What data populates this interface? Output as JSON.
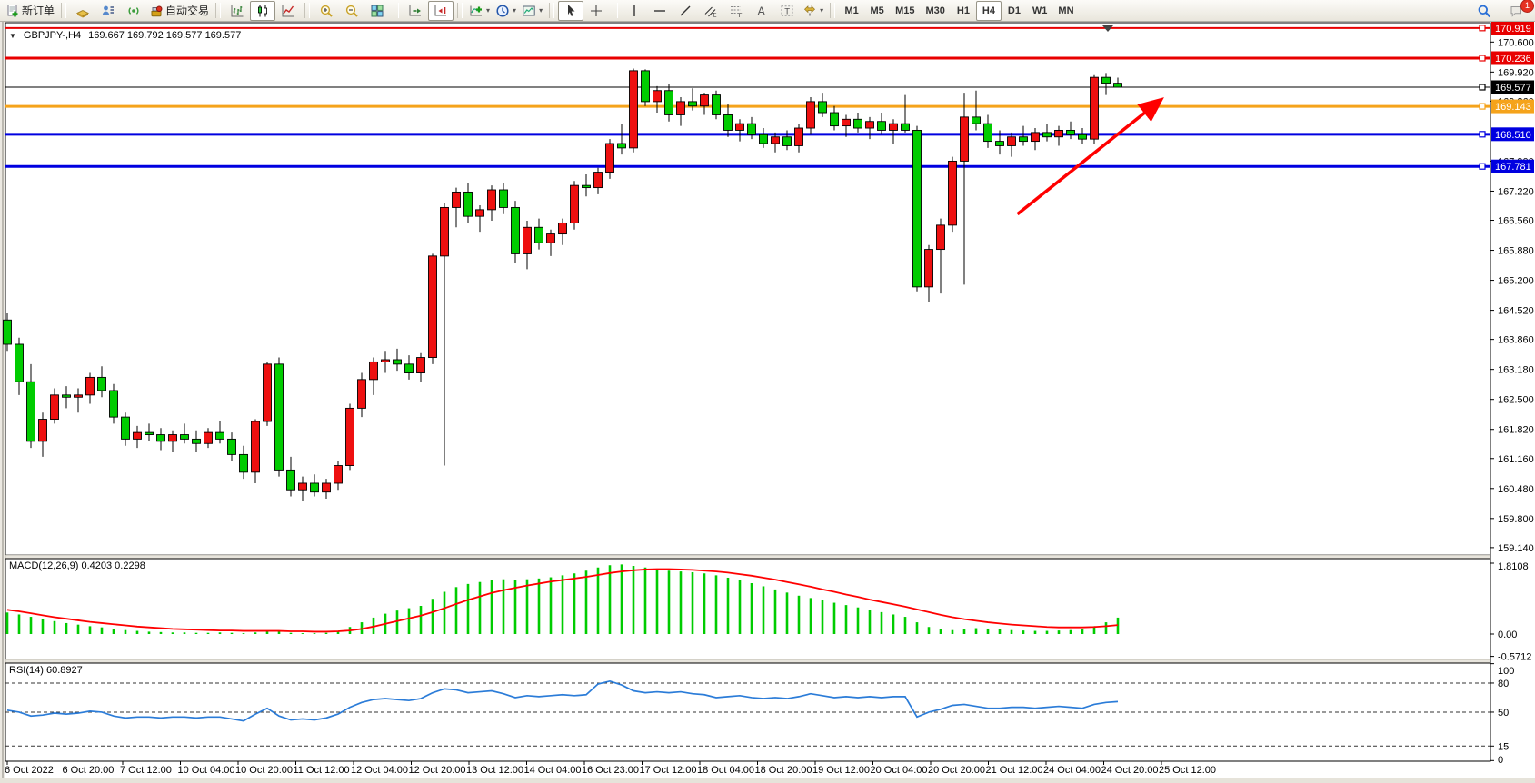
{
  "toolbar": {
    "groups": [
      {
        "items": [
          {
            "name": "new-order-button",
            "icon": "new-order-icon",
            "label": "新订单"
          }
        ]
      },
      {
        "items": [
          {
            "name": "chart-profiles-button",
            "icon": "chart-profiles-icon"
          },
          {
            "name": "market-watch-button",
            "icon": "market-watch-icon"
          },
          {
            "name": "signals-button",
            "icon": "signals-icon"
          },
          {
            "name": "autotrading-button",
            "icon": "autotrading-icon",
            "label": "自动交易"
          }
        ]
      },
      {
        "items": [
          {
            "name": "bar-chart-button",
            "icon": "bar-chart-icon"
          },
          {
            "name": "candlestick-button",
            "icon": "candlestick-icon",
            "pressed": true
          },
          {
            "name": "line-chart-button",
            "icon": "line-chart-icon"
          }
        ]
      },
      {
        "items": [
          {
            "name": "zoom-in-button",
            "icon": "zoom-in-icon"
          },
          {
            "name": "zoom-out-button",
            "icon": "zoom-out-icon"
          },
          {
            "name": "tile-windows-button",
            "icon": "tile-windows-icon"
          }
        ]
      },
      {
        "items": [
          {
            "name": "auto-scroll-button",
            "icon": "auto-scroll-icon"
          },
          {
            "name": "chart-shift-button",
            "icon": "chart-shift-icon",
            "pressed": true
          }
        ]
      },
      {
        "items": [
          {
            "name": "indicators-button",
            "icon": "indicators-icon",
            "dropdown": true
          },
          {
            "name": "periods-button",
            "icon": "periods-icon",
            "dropdown": true
          },
          {
            "name": "templates-button",
            "icon": "templates-icon",
            "dropdown": true
          }
        ]
      },
      {
        "items": [
          {
            "name": "cursor-button",
            "icon": "cursor-icon",
            "pressed": true
          },
          {
            "name": "crosshair-button",
            "icon": "crosshair-icon"
          }
        ]
      },
      {
        "items": [
          {
            "name": "vertical-line-button",
            "icon": "vertical-line-icon"
          },
          {
            "name": "horizontal-line-button",
            "icon": "horizontal-line-icon"
          },
          {
            "name": "trendline-button",
            "icon": "trendline-icon"
          },
          {
            "name": "equidistant-channel-button",
            "icon": "equidistant-channel-icon"
          },
          {
            "name": "fibonacci-button",
            "icon": "fibonacci-icon"
          },
          {
            "name": "text-button",
            "icon": "text-icon"
          },
          {
            "name": "text-label-button",
            "icon": "text-label-icon"
          },
          {
            "name": "arrows-button",
            "icon": "arrows-icon",
            "dropdown": true
          }
        ]
      },
      {
        "items": [
          {
            "name": "timeframe-m1-button",
            "label": "M1"
          },
          {
            "name": "timeframe-m5-button",
            "label": "M5"
          },
          {
            "name": "timeframe-m15-button",
            "label": "M15"
          },
          {
            "name": "timeframe-m30-button",
            "label": "M30"
          },
          {
            "name": "timeframe-h1-button",
            "label": "H1"
          },
          {
            "name": "timeframe-h4-button",
            "label": "H4",
            "pressed": true
          },
          {
            "name": "timeframe-d1-button",
            "label": "D1"
          },
          {
            "name": "timeframe-w1-button",
            "label": "W1"
          },
          {
            "name": "timeframe-mn-button",
            "label": "MN"
          }
        ]
      }
    ],
    "right": [
      {
        "name": "search-button",
        "icon": "search-icon"
      },
      {
        "name": "notifications-button",
        "icon": "chat-icon",
        "badge": "1"
      }
    ]
  },
  "chart": {
    "symbol_period": "GBPJPY-,H4",
    "ohlc": "169.667 169.792 169.577 169.577"
  },
  "chart_data": {
    "type": "candlestick",
    "symbol": "GBPJPY-",
    "timeframe": "H4",
    "current_bar": {
      "open": "169.667",
      "high": "169.792",
      "low": "169.577",
      "close": "169.577"
    },
    "colors": {
      "bull": "#ee1010",
      "bear": "#00cc00",
      "wick": "#000000",
      "macd_hist": "#00cc00",
      "macd_signal": "#ff0000",
      "rsi_line": "#2b7cd8",
      "arrow": "#ff0000"
    },
    "levels": [
      {
        "price": 170.919,
        "label": "170.919",
        "color": "#e80000",
        "width": 2
      },
      {
        "price": 170.236,
        "label": "170.236",
        "color": "#e80000",
        "width": 3
      },
      {
        "price": 169.577,
        "label": "169.577",
        "color": "#000000",
        "width": 1
      },
      {
        "price": 169.143,
        "label": "169.143",
        "color": "#f5a31b",
        "width": 3
      },
      {
        "price": 168.51,
        "label": "168.510",
        "color": "#0000e0",
        "width": 3
      },
      {
        "price": 167.781,
        "label": "167.781",
        "color": "#0000e0",
        "width": 3
      }
    ],
    "price_ticks": [
      "170.600",
      "169.920",
      "169.260",
      "167.900",
      "167.220",
      "166.560",
      "165.880",
      "165.200",
      "164.520",
      "163.860",
      "163.180",
      "162.500",
      "161.820",
      "161.160",
      "160.480",
      "159.800",
      "159.140"
    ],
    "candles": [
      [
        164.3,
        164.45,
        163.6,
        163.75
      ],
      [
        163.75,
        163.9,
        162.6,
        162.9
      ],
      [
        162.9,
        163.3,
        161.4,
        161.55
      ],
      [
        161.55,
        162.2,
        161.2,
        162.05
      ],
      [
        162.05,
        162.75,
        161.95,
        162.6
      ],
      [
        162.6,
        162.8,
        162.3,
        162.55
      ],
      [
        162.55,
        162.75,
        162.2,
        162.6
      ],
      [
        162.6,
        163.1,
        162.4,
        163.0
      ],
      [
        163.0,
        163.25,
        162.55,
        162.7
      ],
      [
        162.7,
        162.85,
        161.95,
        162.1
      ],
      [
        162.1,
        162.2,
        161.45,
        161.6
      ],
      [
        161.6,
        161.9,
        161.4,
        161.75
      ],
      [
        161.75,
        161.95,
        161.55,
        161.7
      ],
      [
        161.7,
        161.85,
        161.35,
        161.55
      ],
      [
        161.55,
        161.8,
        161.3,
        161.7
      ],
      [
        161.7,
        161.95,
        161.5,
        161.6
      ],
      [
        161.6,
        161.8,
        161.3,
        161.5
      ],
      [
        161.5,
        161.85,
        161.4,
        161.75
      ],
      [
        161.75,
        162.0,
        161.5,
        161.6
      ],
      [
        161.6,
        161.75,
        161.1,
        161.25
      ],
      [
        161.25,
        161.45,
        160.7,
        160.85
      ],
      [
        160.85,
        162.05,
        160.6,
        162.0
      ],
      [
        162.0,
        163.35,
        161.9,
        163.3
      ],
      [
        163.3,
        163.45,
        160.75,
        160.9
      ],
      [
        160.9,
        161.2,
        160.3,
        160.45
      ],
      [
        160.45,
        160.75,
        160.2,
        160.6
      ],
      [
        160.6,
        160.8,
        160.3,
        160.4
      ],
      [
        160.4,
        160.7,
        160.25,
        160.6
      ],
      [
        160.6,
        161.1,
        160.45,
        161.0
      ],
      [
        161.0,
        162.4,
        160.9,
        162.3
      ],
      [
        162.3,
        163.1,
        162.1,
        162.95
      ],
      [
        162.95,
        163.45,
        162.6,
        163.35
      ],
      [
        163.35,
        163.6,
        163.1,
        163.4
      ],
      [
        163.4,
        163.65,
        163.15,
        163.3
      ],
      [
        163.3,
        163.5,
        162.95,
        163.1
      ],
      [
        163.1,
        163.55,
        162.9,
        163.45
      ],
      [
        163.45,
        165.8,
        163.3,
        165.75
      ],
      [
        165.75,
        166.95,
        161.0,
        166.85
      ],
      [
        166.85,
        167.3,
        166.4,
        167.2
      ],
      [
        167.2,
        167.4,
        166.5,
        166.65
      ],
      [
        166.65,
        166.9,
        166.3,
        166.8
      ],
      [
        166.8,
        167.35,
        166.55,
        167.25
      ],
      [
        167.25,
        167.4,
        166.7,
        166.85
      ],
      [
        166.85,
        167.0,
        165.6,
        165.8
      ],
      [
        165.8,
        166.55,
        165.45,
        166.4
      ],
      [
        166.4,
        166.6,
        165.9,
        166.05
      ],
      [
        166.05,
        166.35,
        165.75,
        166.25
      ],
      [
        166.25,
        166.6,
        166.0,
        166.5
      ],
      [
        166.5,
        167.45,
        166.35,
        167.35
      ],
      [
        167.35,
        167.6,
        167.1,
        167.3
      ],
      [
        167.3,
        167.75,
        167.15,
        167.65
      ],
      [
        167.65,
        168.4,
        167.5,
        168.3
      ],
      [
        168.3,
        168.75,
        168.05,
        168.2
      ],
      [
        168.2,
        170.0,
        168.1,
        169.95
      ],
      [
        169.95,
        169.98,
        169.15,
        169.25
      ],
      [
        169.25,
        169.6,
        169.0,
        169.5
      ],
      [
        169.5,
        169.65,
        168.8,
        168.95
      ],
      [
        168.95,
        169.35,
        168.7,
        169.25
      ],
      [
        169.25,
        169.55,
        169.05,
        169.15
      ],
      [
        169.15,
        169.45,
        168.95,
        169.4
      ],
      [
        169.4,
        169.5,
        168.85,
        168.95
      ],
      [
        168.95,
        169.2,
        168.45,
        168.6
      ],
      [
        168.6,
        168.85,
        168.35,
        168.75
      ],
      [
        168.75,
        168.9,
        168.4,
        168.5
      ],
      [
        168.5,
        168.65,
        168.2,
        168.3
      ],
      [
        168.3,
        168.55,
        168.1,
        168.45
      ],
      [
        168.45,
        168.6,
        168.15,
        168.25
      ],
      [
        168.25,
        168.75,
        168.1,
        168.65
      ],
      [
        168.65,
        169.35,
        168.5,
        169.25
      ],
      [
        169.25,
        169.45,
        168.9,
        169.0
      ],
      [
        169.0,
        169.15,
        168.6,
        168.7
      ],
      [
        168.7,
        168.95,
        168.45,
        168.85
      ],
      [
        168.85,
        169.0,
        168.55,
        168.65
      ],
      [
        168.65,
        168.9,
        168.4,
        168.8
      ],
      [
        168.8,
        169.0,
        168.5,
        168.6
      ],
      [
        168.6,
        168.85,
        168.3,
        168.75
      ],
      [
        168.75,
        169.4,
        168.55,
        168.6
      ],
      [
        168.6,
        168.7,
        164.95,
        165.05
      ],
      [
        165.05,
        166.0,
        164.7,
        165.9
      ],
      [
        165.9,
        166.6,
        164.9,
        166.45
      ],
      [
        166.45,
        168.0,
        166.3,
        167.9
      ],
      [
        167.9,
        169.45,
        165.1,
        168.9
      ],
      [
        168.9,
        169.5,
        168.6,
        168.75
      ],
      [
        168.75,
        168.95,
        168.2,
        168.35
      ],
      [
        168.35,
        168.6,
        168.05,
        168.25
      ],
      [
        168.25,
        168.55,
        168.0,
        168.45
      ],
      [
        168.45,
        168.7,
        168.25,
        168.35
      ],
      [
        168.35,
        168.65,
        168.15,
        168.55
      ],
      [
        168.55,
        168.75,
        168.35,
        168.45
      ],
      [
        168.45,
        168.7,
        168.25,
        168.6
      ],
      [
        168.6,
        168.8,
        168.4,
        168.5
      ],
      [
        168.5,
        168.65,
        168.3,
        168.4
      ],
      [
        168.4,
        169.85,
        168.3,
        169.8
      ],
      [
        169.8,
        169.9,
        169.4,
        169.667
      ],
      [
        169.667,
        169.792,
        169.577,
        169.577
      ]
    ],
    "time_labels": [
      "6 Oct 2022",
      "6 Oct 20:00",
      "7 Oct 12:00",
      "10 Oct 04:00",
      "10 Oct 20:00",
      "11 Oct 12:00",
      "12 Oct 04:00",
      "12 Oct 20:00",
      "13 Oct 12:00",
      "14 Oct 04:00",
      "16 Oct 23:00",
      "17 Oct 12:00",
      "18 Oct 04:00",
      "18 Oct 20:00",
      "19 Oct 12:00",
      "20 Oct 04:00",
      "20 Oct 20:00",
      "21 Oct 12:00",
      "24 Oct 04:00",
      "24 Oct 20:00",
      "25 Oct 12:00"
    ],
    "macd": {
      "label": "MACD(12,26,9) 0.4203 0.2298",
      "axis": [
        "1.8108",
        "0.00",
        "-0.5712"
      ],
      "ylim": [
        -0.5712,
        1.8108
      ],
      "hist": [
        0.55,
        0.5,
        0.44,
        0.38,
        0.33,
        0.28,
        0.24,
        0.2,
        0.17,
        0.13,
        0.1,
        0.08,
        0.06,
        0.05,
        0.04,
        0.04,
        0.03,
        0.03,
        0.04,
        0.03,
        0.02,
        0.04,
        0.08,
        0.06,
        0.03,
        0.02,
        0.02,
        0.03,
        0.08,
        0.18,
        0.3,
        0.42,
        0.52,
        0.6,
        0.66,
        0.72,
        0.9,
        1.08,
        1.2,
        1.28,
        1.33,
        1.38,
        1.4,
        1.38,
        1.4,
        1.42,
        1.45,
        1.5,
        1.55,
        1.62,
        1.7,
        1.76,
        1.78,
        1.74,
        1.7,
        1.66,
        1.62,
        1.6,
        1.58,
        1.55,
        1.5,
        1.44,
        1.38,
        1.3,
        1.22,
        1.14,
        1.06,
        0.98,
        0.92,
        0.86,
        0.8,
        0.74,
        0.68,
        0.62,
        0.56,
        0.5,
        0.44,
        0.3,
        0.18,
        0.12,
        0.1,
        0.12,
        0.15,
        0.14,
        0.12,
        0.1,
        0.09,
        0.08,
        0.08,
        0.09,
        0.1,
        0.12,
        0.2,
        0.3,
        0.42
      ],
      "signal": [
        0.62,
        0.58,
        0.53,
        0.48,
        0.43,
        0.39,
        0.35,
        0.31,
        0.28,
        0.25,
        0.22,
        0.19,
        0.17,
        0.15,
        0.13,
        0.12,
        0.11,
        0.1,
        0.09,
        0.09,
        0.08,
        0.08,
        0.08,
        0.08,
        0.07,
        0.07,
        0.06,
        0.06,
        0.07,
        0.09,
        0.13,
        0.19,
        0.26,
        0.33,
        0.4,
        0.47,
        0.56,
        0.66,
        0.77,
        0.87,
        0.96,
        1.05,
        1.12,
        1.18,
        1.24,
        1.29,
        1.34,
        1.38,
        1.42,
        1.46,
        1.51,
        1.56,
        1.6,
        1.63,
        1.65,
        1.66,
        1.66,
        1.65,
        1.64,
        1.62,
        1.6,
        1.57,
        1.53,
        1.49,
        1.44,
        1.39,
        1.33,
        1.27,
        1.21,
        1.14,
        1.08,
        1.01,
        0.95,
        0.88,
        0.82,
        0.76,
        0.7,
        0.63,
        0.56,
        0.49,
        0.43,
        0.38,
        0.34,
        0.3,
        0.27,
        0.24,
        0.22,
        0.2,
        0.18,
        0.17,
        0.17,
        0.17,
        0.18,
        0.2,
        0.23
      ]
    },
    "rsi": {
      "label": "RSI(14) 60.8927",
      "axis": [
        "100",
        "80",
        "50",
        "15",
        "0"
      ],
      "levels": [
        80,
        50,
        15
      ],
      "ylim": [
        0,
        100
      ],
      "values": [
        52,
        50,
        46,
        47,
        49,
        48,
        49,
        51,
        50,
        46,
        44,
        45,
        45,
        44,
        45,
        45,
        44,
        45,
        45,
        43,
        41,
        48,
        54,
        46,
        42,
        43,
        42,
        44,
        48,
        55,
        60,
        63,
        64,
        63,
        62,
        64,
        70,
        74,
        73,
        70,
        71,
        72,
        69,
        65,
        67,
        66,
        67,
        68,
        67,
        68,
        79,
        82,
        78,
        72,
        70,
        71,
        70,
        71,
        69,
        68,
        65,
        66,
        67,
        65,
        64,
        65,
        64,
        66,
        69,
        67,
        65,
        66,
        65,
        66,
        65,
        66,
        66,
        45,
        50,
        53,
        57,
        58,
        56,
        54,
        54,
        55,
        55,
        54,
        55,
        56,
        55,
        54,
        58,
        60,
        60.89
      ]
    },
    "arrow": {
      "from": {
        "bar": 85.5,
        "price": 166.7
      },
      "to": {
        "bar": 97.6,
        "price": 169.28
      }
    },
    "shift_marker_x": 1219
  }
}
